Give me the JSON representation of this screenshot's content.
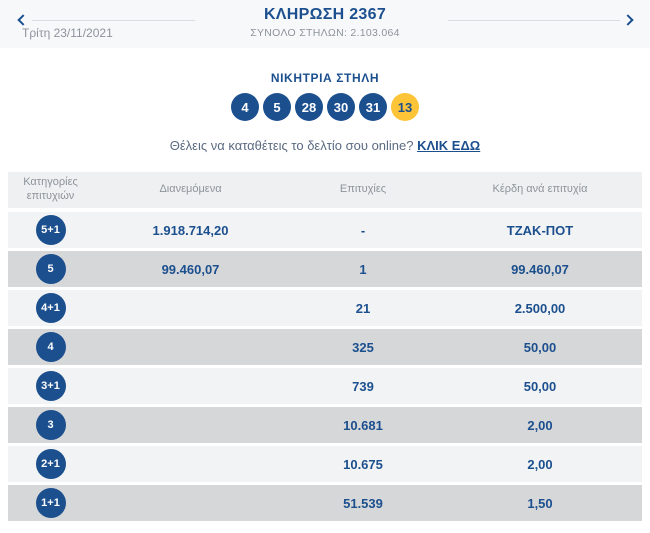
{
  "colors": {
    "brand_blue": "#1b4f8e",
    "bonus_yellow": "#fcc436",
    "muted_gray": "#8d939c",
    "row_light": "#f2f3f4",
    "row_dark": "#d6d7d8",
    "top_strip_bg": "#f7f8fa"
  },
  "header": {
    "date": "Τρίτη 23/11/2021",
    "title": "ΚΛΗΡΩΣΗ 2367",
    "subtitle": "ΣΥΝΟΛΟ ΣΤΗΛΩΝ: 2.103.064"
  },
  "winning": {
    "label": "ΝΙΚΗΤΡΙΑ ΣΤΗΛΗ",
    "numbers": [
      "4",
      "5",
      "28",
      "30",
      "31"
    ],
    "bonus": "13",
    "promo_text": "Θέλεις να καταθέτεις το δελτίο σου online?",
    "promo_link": "ΚΛΙΚ ΕΔΩ"
  },
  "table": {
    "headers": [
      "Κατηγορίες επιτυχιών",
      "Διανεμόμενα",
      "Επιτυχίες",
      "Κέρδη ανά επιτυχία"
    ],
    "rows": [
      {
        "category": "5+1",
        "distributed": "1.918.714,20",
        "wins": "-",
        "prize": "ΤΖΑΚ-ΠΟΤ"
      },
      {
        "category": "5",
        "distributed": "99.460,07",
        "wins": "1",
        "prize": "99.460,07"
      },
      {
        "category": "4+1",
        "distributed": "",
        "wins": "21",
        "prize": "2.500,00"
      },
      {
        "category": "4",
        "distributed": "",
        "wins": "325",
        "prize": "50,00"
      },
      {
        "category": "3+1",
        "distributed": "",
        "wins": "739",
        "prize": "50,00"
      },
      {
        "category": "3",
        "distributed": "",
        "wins": "10.681",
        "prize": "2,00"
      },
      {
        "category": "2+1",
        "distributed": "",
        "wins": "10.675",
        "prize": "2,00"
      },
      {
        "category": "1+1",
        "distributed": "",
        "wins": "51.539",
        "prize": "1,50"
      }
    ]
  }
}
